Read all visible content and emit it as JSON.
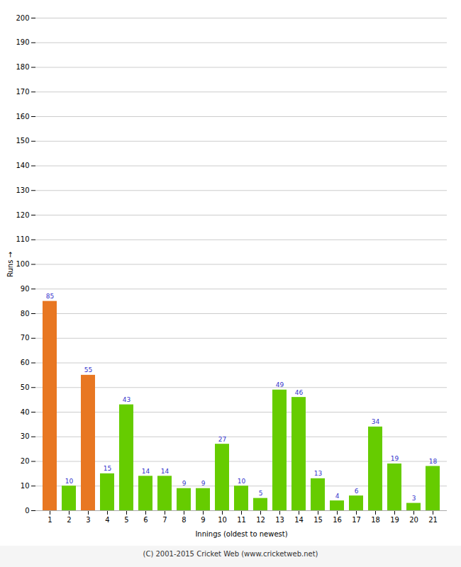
{
  "chart_data": {
    "type": "bar",
    "xlabel": "Innings (oldest to newest)",
    "ylabel": "Runs",
    "caption": "(C) 2001-2015 Cricket Web (www.cricketweb.net)",
    "categories": [
      1,
      2,
      3,
      4,
      5,
      6,
      7,
      8,
      9,
      10,
      11,
      12,
      13,
      14,
      15,
      16,
      17,
      18,
      19,
      20,
      21
    ],
    "values": [
      85,
      10,
      55,
      15,
      43,
      14,
      14,
      9,
      9,
      27,
      10,
      5,
      49,
      46,
      13,
      4,
      6,
      34,
      19,
      3,
      18
    ],
    "colors": [
      "#e87722",
      "#66cc00",
      "#e87722",
      "#66cc00",
      "#66cc00",
      "#66cc00",
      "#66cc00",
      "#66cc00",
      "#66cc00",
      "#66cc00",
      "#66cc00",
      "#66cc00",
      "#66cc00",
      "#66cc00",
      "#66cc00",
      "#66cc00",
      "#66cc00",
      "#66cc00",
      "#66cc00",
      "#66cc00",
      "#66cc00"
    ],
    "ylim": [
      0,
      200
    ],
    "yticks": [
      0,
      10,
      20,
      30,
      40,
      50,
      60,
      70,
      80,
      90,
      100,
      110,
      120,
      130,
      140,
      150,
      160,
      170,
      180,
      190,
      200
    ],
    "grid": true,
    "data_labels": true
  }
}
